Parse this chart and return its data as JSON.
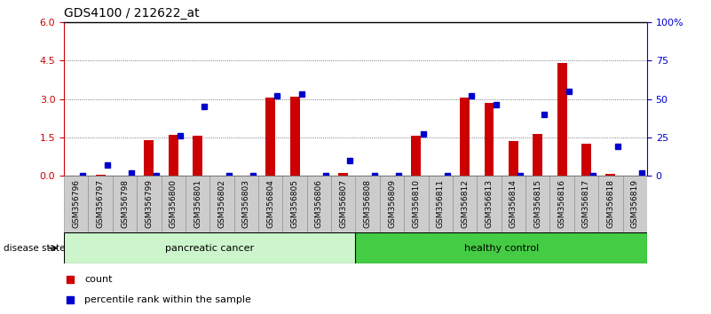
{
  "title": "GDS4100 / 212622_at",
  "samples": [
    "GSM356796",
    "GSM356797",
    "GSM356798",
    "GSM356799",
    "GSM356800",
    "GSM356801",
    "GSM356802",
    "GSM356803",
    "GSM356804",
    "GSM356805",
    "GSM356806",
    "GSM356807",
    "GSM356808",
    "GSM356809",
    "GSM356810",
    "GSM356811",
    "GSM356812",
    "GSM356813",
    "GSM356814",
    "GSM356815",
    "GSM356816",
    "GSM356817",
    "GSM356818",
    "GSM356819"
  ],
  "counts": [
    0.0,
    0.05,
    0.0,
    1.4,
    1.6,
    1.55,
    0.0,
    0.0,
    3.05,
    3.1,
    0.0,
    0.12,
    0.0,
    0.0,
    1.55,
    0.0,
    3.05,
    2.85,
    1.35,
    1.65,
    4.4,
    1.25,
    0.08,
    0.0
  ],
  "percentiles": [
    0.0,
    7.0,
    2.0,
    0.0,
    26.0,
    45.0,
    0.0,
    0.0,
    52.0,
    53.0,
    0.0,
    10.0,
    0.0,
    0.0,
    27.0,
    0.0,
    52.0,
    46.0,
    0.0,
    40.0,
    55.0,
    0.0,
    19.0,
    2.0
  ],
  "cancer_count": 12,
  "healthy_count": 12,
  "bar_color": "#cc0000",
  "dot_color": "#0000cc",
  "left_ylim": [
    0,
    6
  ],
  "right_ylim": [
    0,
    100
  ],
  "left_yticks": [
    0,
    1.5,
    3.0,
    4.5,
    6
  ],
  "right_yticks": [
    0,
    25,
    50,
    75,
    100
  ],
  "right_yticklabels": [
    "0",
    "25",
    "50",
    "75",
    "100%"
  ],
  "tick_bg_color": "#cccccc",
  "cancer_color": "#ccf5cc",
  "healthy_color": "#44cc44",
  "grid_color": "#555555",
  "dotted_levels": [
    1.5,
    3.0,
    4.5
  ]
}
